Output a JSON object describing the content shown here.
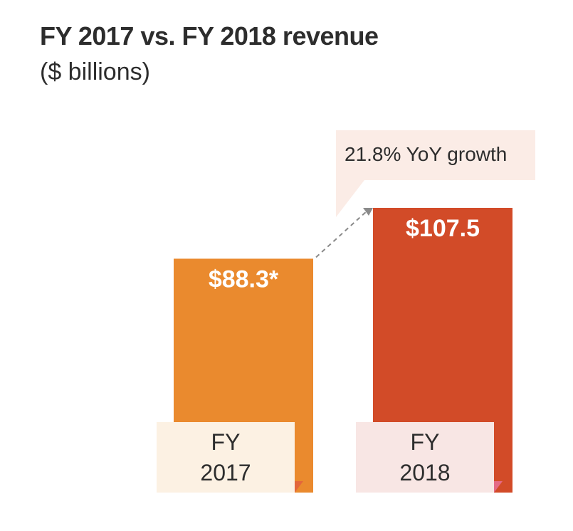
{
  "chart_data": {
    "type": "bar",
    "title": "FY 2017 vs. FY 2018 revenue",
    "subtitle": "($ billions)",
    "categories": [
      [
        "FY",
        "2017"
      ],
      [
        "FY",
        "2018"
      ]
    ],
    "values": [
      88.3,
      107.5
    ],
    "value_labels": [
      "$88.3*",
      "$107.5"
    ],
    "annotation": "21.8% YoY growth",
    "xlabel": "",
    "ylabel": "",
    "grid": false,
    "colors": {
      "bar_2017": "#ea8a2e",
      "bar_2018": "#d24b28",
      "tick_box_2017": "#fcf1e3",
      "tick_box_2018": "#f8e6e4",
      "callout_box": "#fbece6",
      "corner_2017": "#e3663b",
      "corner_2018": "#e46a86",
      "arrow": "#8a8a8a"
    }
  }
}
